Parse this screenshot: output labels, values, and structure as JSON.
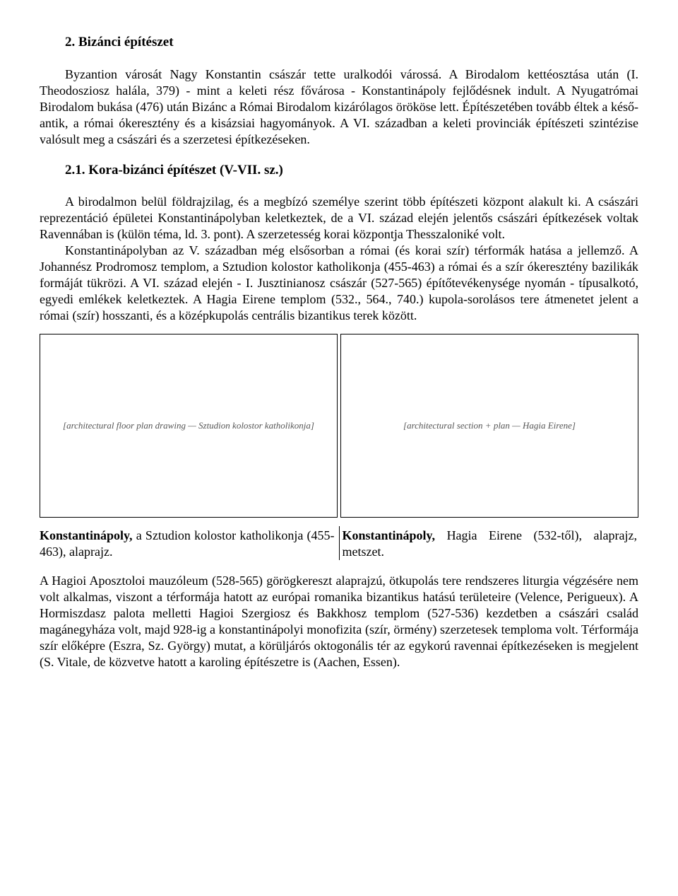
{
  "title": "2. Bizánci építészet",
  "intro": "Byzantion városát Nagy Konstantin császár tette uralkodói várossá. A Birodalom kettéosztása után (I. Theodosziosz halála, 379) - mint a keleti rész fővárosa - Konstantinápoly fejlődésnek indult. A Nyugatrómai Birodalom bukása (476) után Bizánc a Római Birodalom kizárólagos örököse lett. Építészetében tovább éltek a késő-antik, a római ókeresztény és a kisázsiai hagyományok. A VI. században a keleti provinciák építészeti szintézise valósult meg a császári és a szerzetesi építkezéseken.",
  "section21_title": "2.1. Kora-bizánci építészet (V-VII. sz.)",
  "section21_p1": "A birodalmon belül földrajzilag, és a megbízó személye szerint több építészeti központ alakult ki. A császári reprezentáció épületei Konstantinápolyban keletkeztek, de a VI. század elején jelentős császári építkezések voltak Ravennában is (külön téma, ld. 3. pont). A szerzetesség korai központja Thesszaloniké volt.",
  "section21_p2": "Konstantinápolyban az V. században még elsősorban a római (és korai szír) térformák hatása a jellemző. A Johannész Prodromosz templom, a Sztudion kolostor katholikonja (455-463) a római és a szír ókeresztény bazilikák formáját tükrözi. A VI. század elején - I. Jusztinianosz császár (527-565) építőtevékenysége nyomán - típusalkotó, egyedi emlékek keletkeztek. A Hagia Eirene templom (532., 564., 740.) kupola-sorolásos tere átmenetet jelent a római (szír) hosszanti, és a középkupolás centrális bizantikus terek között.",
  "figure_left_placeholder": "[architectural floor plan drawing — Sztudion kolostor katholikonja]",
  "figure_right_placeholder": "[architectural section + plan — Hagia Eirene]",
  "caption_left_prefix": "Konstantinápoly,",
  "caption_left_rest": " a Sztudion kolostor katholikonja (455-463), alaprajz.",
  "caption_right_prefix": "Konstantinápoly,",
  "caption_right_rest": " Hagia Eirene (532-től), alaprajz, metszet.",
  "para_after": "A Hagioi Aposztoloi mauzóleum (528-565) görögkereszt alaprajzú, ötkupolás tere rendszeres liturgia végzésére nem volt alkalmas, viszont a térformája hatott az európai romanika bizantikus hatású területeire (Velence, Perigueux). A Hormiszdasz palota melletti Hagioi Szergiosz és Bakkhosz templom (527-536) kezdetben a császári család magánegyháza volt, majd 928-ig a konstantinápolyi monofizita (szír, örmény) szerzetesek temploma volt. Térformája szír előképre (Eszra, Sz. György) mutat, a körüljárós oktogonális tér az egykorú ravennai építkezéseken is megjelent (S. Vitale, de közvetve hatott a karoling építészetre is (Aachen, Essen)."
}
